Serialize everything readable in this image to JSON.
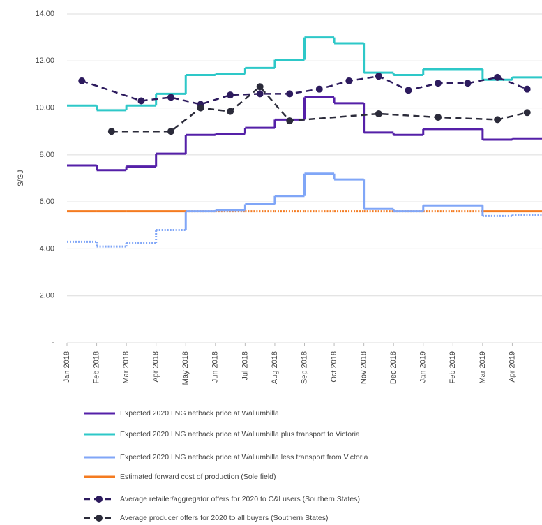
{
  "chart_data": {
    "type": "step-line",
    "y_axis_label": "$/GJ",
    "categories": [
      "Jan 2018",
      "Feb 2018",
      "Mar 2018",
      "Apr 2018",
      "May 2018",
      "Jun 2018",
      "Jul 2018",
      "Aug 2018",
      "Sep 2018",
      "Oct 2018",
      "Nov 2018",
      "Dec 2018",
      "Jan 2019",
      "Feb 2019",
      "Mar 2019",
      "Apr 2019"
    ],
    "ylim": [
      0,
      14
    ],
    "yticks": [
      {
        "value": 0,
        "label": "-"
      },
      {
        "value": 2,
        "label": "2.00"
      },
      {
        "value": 4,
        "label": "4.00"
      },
      {
        "value": 6,
        "label": "6.00"
      },
      {
        "value": 8,
        "label": "8.00"
      },
      {
        "value": 10,
        "label": "10.00"
      },
      {
        "value": 12,
        "label": "12.00"
      },
      {
        "value": 14,
        "label": "14.00"
      }
    ],
    "grid": true,
    "legend": "bottom",
    "series": [
      {
        "name": "Expected 2020 LNG netback price at Wallumbilla",
        "color": "#5520a8",
        "style": "step",
        "values": [
          7.55,
          7.35,
          7.5,
          8.05,
          8.85,
          8.9,
          9.15,
          9.5,
          10.45,
          10.2,
          8.95,
          8.85,
          9.1,
          9.1,
          8.65,
          8.7
        ]
      },
      {
        "name": "Expected 2020 LNG netback price at Wallumbilla plus transport to Victoria",
        "color": "#2ec8c8",
        "style": "step",
        "values": [
          10.1,
          9.9,
          10.1,
          10.6,
          11.4,
          11.45,
          11.7,
          12.05,
          13.0,
          12.75,
          11.5,
          11.4,
          11.65,
          11.65,
          11.2,
          11.3
        ]
      },
      {
        "name": "Expected 2020 LNG netback price at Wallumbilla less transport from Victoria",
        "color": "#80a6f7",
        "style": "step",
        "values": [
          4.3,
          4.1,
          4.25,
          4.8,
          5.6,
          5.65,
          5.9,
          6.25,
          7.2,
          6.95,
          5.7,
          5.6,
          5.85,
          5.85,
          5.4,
          5.45
        ]
      },
      {
        "name": "Estimated forward cost of production (Sole field)",
        "color": "#f47b20",
        "style": "step",
        "values": [
          5.6,
          5.6,
          5.6,
          5.6,
          5.6,
          5.6,
          5.6,
          5.6,
          5.6,
          5.6,
          5.6,
          5.6,
          5.6,
          5.6,
          5.6,
          5.6
        ]
      },
      {
        "name": "Average retailer/aggregator offers for 2020 to C&I users (Southern States)",
        "color": "#2d1b5e",
        "style": "dashed-dots",
        "x": [
          "Jan 2018",
          "Mar 2018",
          "Apr 2018",
          "May 2018",
          "Jun 2018",
          "Jul 2018",
          "Aug 2018",
          "Sep 2018",
          "Oct 2018",
          "Nov 2018",
          "Dec 2018",
          "Jan 2019",
          "Feb 2019",
          "Mar 2019",
          "Apr 2019"
        ],
        "values": [
          11.15,
          10.3,
          10.45,
          10.15,
          10.55,
          10.6,
          10.6,
          10.8,
          11.15,
          11.35,
          10.75,
          11.05,
          11.05,
          11.3,
          10.8
        ]
      },
      {
        "name": "Average producer offers for 2020 to all buyers (Southern States)",
        "color": "#2b2b3a",
        "style": "dashed-dots",
        "x": [
          "Feb 2018",
          "Apr 2018",
          "May 2018",
          "Jun 2018",
          "Jul 2018",
          "Aug 2018",
          "Nov 2018",
          "Jan 2019",
          "Mar 2019",
          "Apr 2019"
        ],
        "values": [
          9.0,
          9.0,
          10.0,
          9.85,
          10.9,
          9.45,
          9.75,
          9.6,
          9.5,
          9.8
        ]
      }
    ]
  }
}
